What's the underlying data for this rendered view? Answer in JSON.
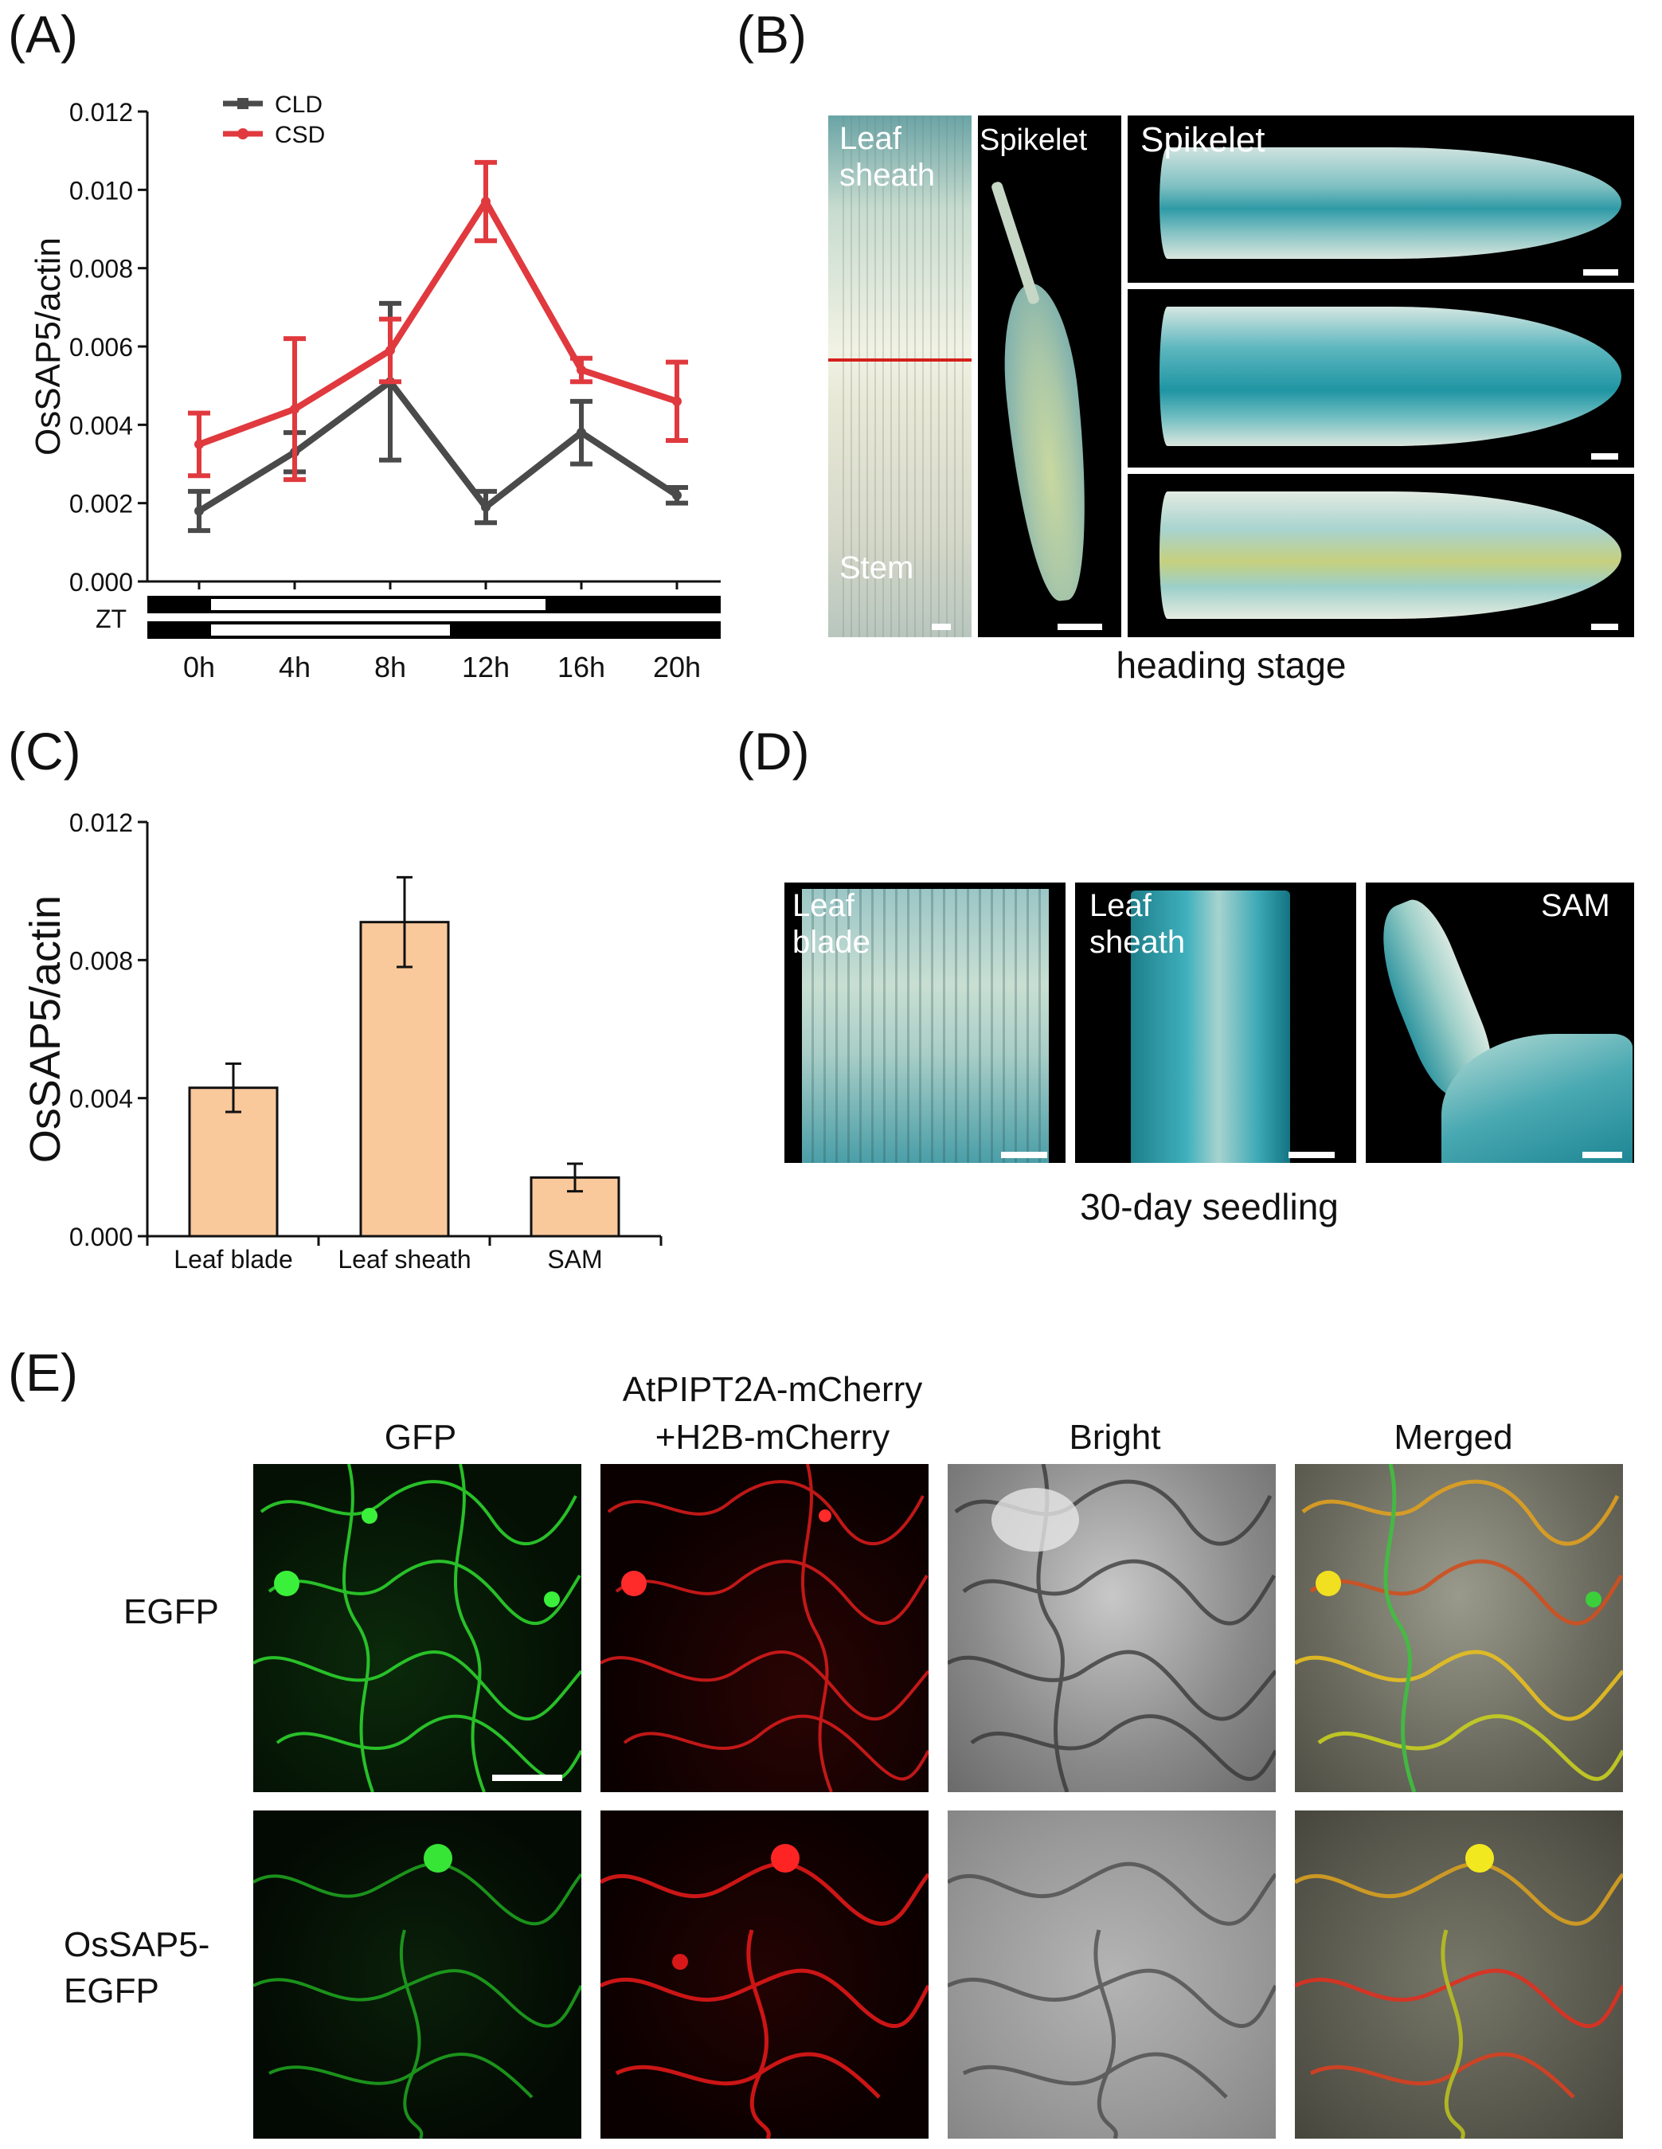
{
  "panels": {
    "A": {
      "letter": "(A)"
    },
    "B": {
      "letter": "(B)",
      "caption": "heading stage",
      "images": [
        {
          "label": "Leaf\nsheath",
          "label2": "Stem"
        },
        {
          "label": "Spikelet"
        },
        {
          "label": "Spikelet"
        },
        {
          "label": ""
        },
        {
          "label": ""
        }
      ]
    },
    "C": {
      "letter": "(C)"
    },
    "D": {
      "letter": "(D)",
      "caption": "30-day seedling",
      "images": [
        {
          "label": "Leaf\nblade"
        },
        {
          "label": "Leaf\nsheath"
        },
        {
          "label": "SAM"
        }
      ]
    },
    "E": {
      "letter": "(E)",
      "columns": [
        "GFP",
        "AtPIPT2A-mCherry\n+H2B-mCherry",
        "Bright",
        "Merged"
      ],
      "rows": [
        "EGFP",
        "OsSAP5-\nEGFP"
      ]
    }
  },
  "chart_data": [
    {
      "type": "line",
      "panel": "A",
      "x": [
        "0h",
        "4h",
        "8h",
        "12h",
        "16h",
        "20h"
      ],
      "ylabel": "OsSAP5/actin",
      "ylim": [
        0,
        0.012
      ],
      "yticks": [
        "0.000",
        "0.002",
        "0.004",
        "0.006",
        "0.008",
        "0.010",
        "0.012"
      ],
      "light_bar_label": "ZT",
      "legend_position": "top-left",
      "series": [
        {
          "name": "CLD",
          "color": "#4a4a4a",
          "values": [
            0.0018,
            0.0033,
            0.0051,
            0.0019,
            0.0038,
            0.0022
          ],
          "err": [
            0.0005,
            0.0005,
            0.002,
            0.0004,
            0.0008,
            0.0002
          ]
        },
        {
          "name": "CSD",
          "color": "#e0393e",
          "values": [
            0.0035,
            0.0044,
            0.0059,
            0.0097,
            0.0054,
            0.0046
          ],
          "err": [
            0.0008,
            0.0018,
            0.0008,
            0.001,
            0.0003,
            0.001
          ]
        }
      ],
      "light_periods": {
        "CLD": [
          0.5,
          14.5
        ],
        "CSD": [
          0.5,
          10.5
        ]
      }
    },
    {
      "type": "bar",
      "panel": "C",
      "categories": [
        "Leaf blade",
        "Leaf sheath",
        "SAM"
      ],
      "values": [
        0.0043,
        0.0091,
        0.0017
      ],
      "err": [
        0.0007,
        0.0013,
        0.0004
      ],
      "ylabel": "OsSAP5/actin",
      "ylim": [
        0,
        0.012
      ],
      "yticks": [
        "0.000",
        "0.004",
        "0.008",
        "0.012"
      ],
      "bar_color": "#f9c89b"
    }
  ]
}
